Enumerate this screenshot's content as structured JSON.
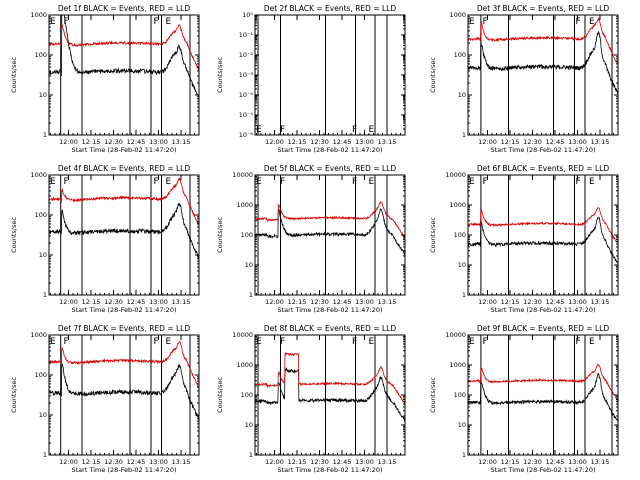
{
  "figure": {
    "background": "#ffffff",
    "axis_color": "#000000"
  },
  "chart_data": [
    {
      "type": "line",
      "title": "Det 1f BLACK = Events, RED = LLD",
      "ylabel": "Counts/sec",
      "xlabel": "Start Time (28-Feb-02 11:47:20)",
      "x_tick_labels": [
        "12:00",
        "12:15",
        "12:30",
        "12:45",
        "13:00",
        "13:15"
      ],
      "x_ticks_min": [
        13,
        28,
        43,
        58,
        73,
        88
      ],
      "xlim_min": [
        0,
        100
      ],
      "y_scale": "log",
      "ylim": [
        1,
        1000
      ],
      "y_tick_labels": [
        "1",
        "10",
        "100",
        "1000"
      ],
      "y_tick_values": [
        1,
        10,
        100,
        1000
      ],
      "event_lines_min": [
        7.8,
        22,
        54,
        68,
        75,
        94
      ],
      "event_markers": [
        {
          "min": 0,
          "text": "E"
        },
        {
          "min": 9,
          "text": "F"
        },
        {
          "min": 69,
          "text": "F"
        },
        {
          "min": 77,
          "text": "E"
        }
      ],
      "series": [
        {
          "name": "BLACK = Events",
          "color": "#000000",
          "base": 30,
          "burst1": [
            9,
            70
          ],
          "burst2": [
            87,
            3
          ],
          "burst3": [
            85,
            3.5
          ]
        },
        {
          "name": "RED = LLD",
          "color": "#d80000",
          "base": 150,
          "burst1": [
            9,
            3.5
          ],
          "burst2": [
            87,
            2.2
          ],
          "burst3": [
            85,
            2.5
          ]
        }
      ]
    },
    {
      "type": "line",
      "title": "Det 2f BLACK = Events, RED = LLD",
      "ylabel": "Counts/sec",
      "xlabel": "Start Time (28-Feb-02 11:47:20)",
      "x_tick_labels": [
        "12:00",
        "12:15",
        "12:30",
        "12:45",
        "13:00",
        "13:15"
      ],
      "x_ticks_min": [
        13,
        28,
        43,
        58,
        73,
        88
      ],
      "xlim_min": [
        0,
        100
      ],
      "y_scale": "log",
      "ylim": [
        1e-06,
        1
      ],
      "y_tick_labels": [
        "10⁻⁶",
        "10⁻⁵",
        "10⁻⁴",
        "10⁻³",
        "10⁻²",
        "10⁻¹",
        "10⁰"
      ],
      "y_tick_values": [
        1e-06,
        1e-05,
        0.0001,
        0.001,
        0.01,
        0.1,
        1
      ],
      "event_lines_min": [
        2,
        17,
        47,
        67,
        80,
        88
      ],
      "event_markers": [
        {
          "min": 0,
          "text": "E"
        },
        {
          "min": 16,
          "text": "F"
        },
        {
          "min": 64,
          "text": "F"
        },
        {
          "min": 75,
          "text": "E"
        }
      ],
      "series": []
    },
    {
      "type": "line",
      "title": "Det 3f BLACK = Events, RED = LLD",
      "ylabel": "Counts/sec",
      "xlabel": "Start Time (28-Feb-02 11:47:20)",
      "x_tick_labels": [
        "12:00",
        "12:15",
        "12:30",
        "12:45",
        "13:00",
        "13:15"
      ],
      "x_ticks_min": [
        13,
        28,
        43,
        58,
        73,
        88
      ],
      "xlim_min": [
        0,
        100
      ],
      "y_scale": "log",
      "ylim": [
        1,
        1000
      ],
      "y_tick_labels": [
        "1",
        "10",
        "100",
        "1000"
      ],
      "y_tick_values": [
        1,
        10,
        100,
        1000
      ],
      "event_lines_min": [
        8.6,
        27,
        57,
        71,
        78,
        96
      ],
      "event_markers": [
        {
          "min": 0,
          "text": "E"
        },
        {
          "min": 9,
          "text": "F"
        },
        {
          "min": 71,
          "text": "F"
        },
        {
          "min": 80,
          "text": "E"
        }
      ],
      "series": [
        {
          "name": "BLACK = Events",
          "color": "#000000",
          "base": 38,
          "burst1": [
            9,
            5
          ],
          "burst2": [
            87,
            7
          ],
          "burst3": [
            85,
            3.5
          ]
        },
        {
          "name": "RED = LLD",
          "color": "#d80000",
          "base": 200,
          "burst1": [
            9,
            3
          ],
          "burst2": [
            87,
            2.5
          ],
          "burst3": [
            85,
            2.5
          ]
        }
      ]
    },
    {
      "type": "line",
      "title": "Det 4f BLACK = Events, RED = LLD",
      "ylabel": "Counts/sec",
      "xlabel": "Start Time (28-Feb-02 11:47:20)",
      "x_tick_labels": [
        "12:00",
        "12:15",
        "12:30",
        "12:45",
        "13:00",
        "13:15"
      ],
      "x_ticks_min": [
        13,
        28,
        43,
        58,
        73,
        88
      ],
      "xlim_min": [
        0,
        100
      ],
      "y_scale": "log",
      "ylim": [
        1,
        1000
      ],
      "y_tick_labels": [
        "1",
        "10",
        "100",
        "1000"
      ],
      "y_tick_values": [
        1,
        10,
        100,
        1000
      ],
      "event_lines_min": [
        7.8,
        22,
        54,
        68,
        75,
        94
      ],
      "event_markers": [
        {
          "min": 0,
          "text": "E"
        },
        {
          "min": 9,
          "text": "F"
        },
        {
          "min": 69,
          "text": "F"
        },
        {
          "min": 77,
          "text": "E"
        }
      ],
      "series": [
        {
          "name": "BLACK = Events",
          "color": "#000000",
          "base": 30,
          "burst1": [
            9,
            4
          ],
          "burst2": [
            87,
            4
          ],
          "burst3": [
            85,
            3.5
          ]
        },
        {
          "name": "RED = LLD",
          "color": "#d80000",
          "base": 200,
          "burst1": [
            9,
            2
          ],
          "burst2": [
            87,
            2.5
          ],
          "burst3": [
            85,
            2.5
          ]
        }
      ]
    },
    {
      "type": "line",
      "title": "Det 5f BLACK = Events, RED = LLD",
      "ylabel": "Counts/sec",
      "xlabel": "Start Time (28-Feb-02 11:47:20)",
      "x_tick_labels": [
        "12:00",
        "12:15",
        "12:30",
        "12:45",
        "13:00",
        "13:15"
      ],
      "x_ticks_min": [
        13,
        28,
        43,
        58,
        73,
        88
      ],
      "xlim_min": [
        0,
        100
      ],
      "y_scale": "log",
      "ylim": [
        1,
        10000
      ],
      "y_tick_labels": [
        "1",
        "10",
        "100",
        "1000",
        "10000"
      ],
      "y_tick_values": [
        1,
        10,
        100,
        1000,
        10000
      ],
      "event_lines_min": [
        2,
        17,
        47,
        67,
        80,
        88
      ],
      "event_markers": [
        {
          "min": 0,
          "text": "E"
        },
        {
          "min": 16,
          "text": "F"
        },
        {
          "min": 64,
          "text": "F"
        },
        {
          "min": 75,
          "text": "E"
        }
      ],
      "series": [
        {
          "name": "BLACK = Events",
          "color": "#000000",
          "base": 80,
          "burst1": [
            16,
            8
          ],
          "burst2": [
            84,
            6
          ],
          "burst3": [
            83,
            3.5
          ]
        },
        {
          "name": "RED = LLD",
          "color": "#d80000",
          "base": 280,
          "burst1": [
            16,
            3.5
          ],
          "burst2": [
            84,
            3
          ],
          "burst3": [
            83,
            2.5
          ]
        }
      ]
    },
    {
      "type": "line",
      "title": "Det 6f BLACK = Events, RED = LLD",
      "ylabel": "Counts/sec",
      "xlabel": "Start Time (28-Feb-02 11:47:20)",
      "x_tick_labels": [
        "12:00",
        "12:15",
        "12:30",
        "12:45",
        "13:00",
        "13:15"
      ],
      "x_ticks_min": [
        13,
        28,
        43,
        58,
        73,
        88
      ],
      "xlim_min": [
        0,
        100
      ],
      "y_scale": "log",
      "ylim": [
        1,
        10000
      ],
      "y_tick_labels": [
        "1",
        "10",
        "100",
        "1000",
        "10000"
      ],
      "y_tick_values": [
        1,
        10,
        100,
        1000,
        10000
      ],
      "event_lines_min": [
        8.6,
        27,
        57,
        71,
        78,
        96
      ],
      "event_markers": [
        {
          "min": 0,
          "text": "E"
        },
        {
          "min": 9,
          "text": "F"
        },
        {
          "min": 71,
          "text": "F"
        },
        {
          "min": 80,
          "text": "E"
        }
      ],
      "series": [
        {
          "name": "BLACK = Events",
          "color": "#000000",
          "base": 40,
          "burst1": [
            9,
            6
          ],
          "burst2": [
            87,
            7
          ],
          "burst3": [
            85,
            3.5
          ]
        },
        {
          "name": "RED = LLD",
          "color": "#d80000",
          "base": 180,
          "burst1": [
            9,
            3.5
          ],
          "burst2": [
            87,
            3
          ],
          "burst3": [
            85,
            2.5
          ]
        }
      ]
    },
    {
      "type": "line",
      "title": "Det 7f BLACK = Events, RED = LLD",
      "ylabel": "Counts/sec",
      "xlabel": "Start Time (28-Feb-02 11:47:20)",
      "x_tick_labels": [
        "12:00",
        "12:15",
        "12:30",
        "12:45",
        "13:00",
        "13:15"
      ],
      "x_ticks_min": [
        13,
        28,
        43,
        58,
        73,
        88
      ],
      "xlim_min": [
        0,
        100
      ],
      "y_scale": "log",
      "ylim": [
        1,
        1000
      ],
      "y_tick_labels": [
        "1",
        "10",
        "100",
        "1000"
      ],
      "y_tick_values": [
        1,
        10,
        100,
        1000
      ],
      "event_lines_min": [
        7.8,
        22,
        54,
        68,
        75,
        94
      ],
      "event_markers": [
        {
          "min": 0,
          "text": "E"
        },
        {
          "min": 9,
          "text": "F"
        },
        {
          "min": 69,
          "text": "F"
        },
        {
          "min": 77,
          "text": "E"
        }
      ],
      "series": [
        {
          "name": "BLACK = Events",
          "color": "#000000",
          "base": 28,
          "burst1": [
            9,
            6
          ],
          "burst2": [
            87,
            4
          ],
          "burst3": [
            85,
            3.5
          ]
        },
        {
          "name": "RED = LLD",
          "color": "#d80000",
          "base": 170,
          "burst1": [
            9,
            2.5
          ],
          "burst2": [
            87,
            2.5
          ],
          "burst3": [
            85,
            2.5
          ]
        }
      ]
    },
    {
      "type": "line",
      "title": "Det 8f BLACK = Events, RED = LLD",
      "ylabel": "Counts/sec",
      "xlabel": "Start Time (28-Feb-02 11:47:20)",
      "x_tick_labels": [
        "12:00",
        "12:15",
        "12:30",
        "12:45",
        "13:00",
        "13:15"
      ],
      "x_ticks_min": [
        13,
        28,
        43,
        58,
        73,
        88
      ],
      "xlim_min": [
        0,
        100
      ],
      "y_scale": "log",
      "ylim": [
        1,
        10000
      ],
      "y_tick_labels": [
        "1",
        "10",
        "100",
        "1000",
        "10000"
      ],
      "y_tick_values": [
        1,
        10,
        100,
        1000,
        10000
      ],
      "event_lines_min": [
        2,
        17,
        47,
        67,
        80,
        88
      ],
      "event_markers": [
        {
          "min": 0,
          "text": "E"
        },
        {
          "min": 16,
          "text": "F"
        },
        {
          "min": 64,
          "text": "F"
        },
        {
          "min": 75,
          "text": "E"
        }
      ],
      "plateau": [
        20,
        29,
        10
      ],
      "series": [
        {
          "name": "BLACK = Events",
          "color": "#000000",
          "base": 50,
          "burst1": [
            16,
            5
          ],
          "burst2": [
            84,
            5
          ],
          "burst3": [
            83,
            3.5
          ]
        },
        {
          "name": "RED = LLD",
          "color": "#d80000",
          "base": 180,
          "burst1": [
            16,
            3
          ],
          "burst2": [
            84,
            3
          ],
          "burst3": [
            83,
            2.5
          ]
        }
      ]
    },
    {
      "type": "line",
      "title": "Det 9f BLACK = Events, RED = LLD",
      "ylabel": "Counts/sec",
      "xlabel": "Start Time (28-Feb-02 11:47:20)",
      "x_tick_labels": [
        "12:00",
        "12:15",
        "12:30",
        "12:45",
        "13:00",
        "13:15"
      ],
      "x_ticks_min": [
        13,
        28,
        43,
        58,
        73,
        88
      ],
      "xlim_min": [
        0,
        100
      ],
      "y_scale": "log",
      "ylim": [
        1,
        10000
      ],
      "y_tick_labels": [
        "1",
        "10",
        "100",
        "1000",
        "10000"
      ],
      "y_tick_values": [
        1,
        10,
        100,
        1000,
        10000
      ],
      "event_lines_min": [
        8.6,
        27,
        57,
        71,
        78,
        96
      ],
      "event_markers": [
        {
          "min": 0,
          "text": "E"
        },
        {
          "min": 9,
          "text": "F"
        },
        {
          "min": 71,
          "text": "F"
        },
        {
          "min": 80,
          "text": "E"
        }
      ],
      "series": [
        {
          "name": "BLACK = Events",
          "color": "#000000",
          "base": 45,
          "burst1": [
            9,
            6
          ],
          "burst2": [
            87,
            8
          ],
          "burst3": [
            85,
            3.5
          ]
        },
        {
          "name": "RED = LLD",
          "color": "#d80000",
          "base": 230,
          "burst1": [
            9,
            3.5
          ],
          "burst2": [
            87,
            3
          ],
          "burst3": [
            85,
            2.5
          ]
        }
      ]
    }
  ]
}
